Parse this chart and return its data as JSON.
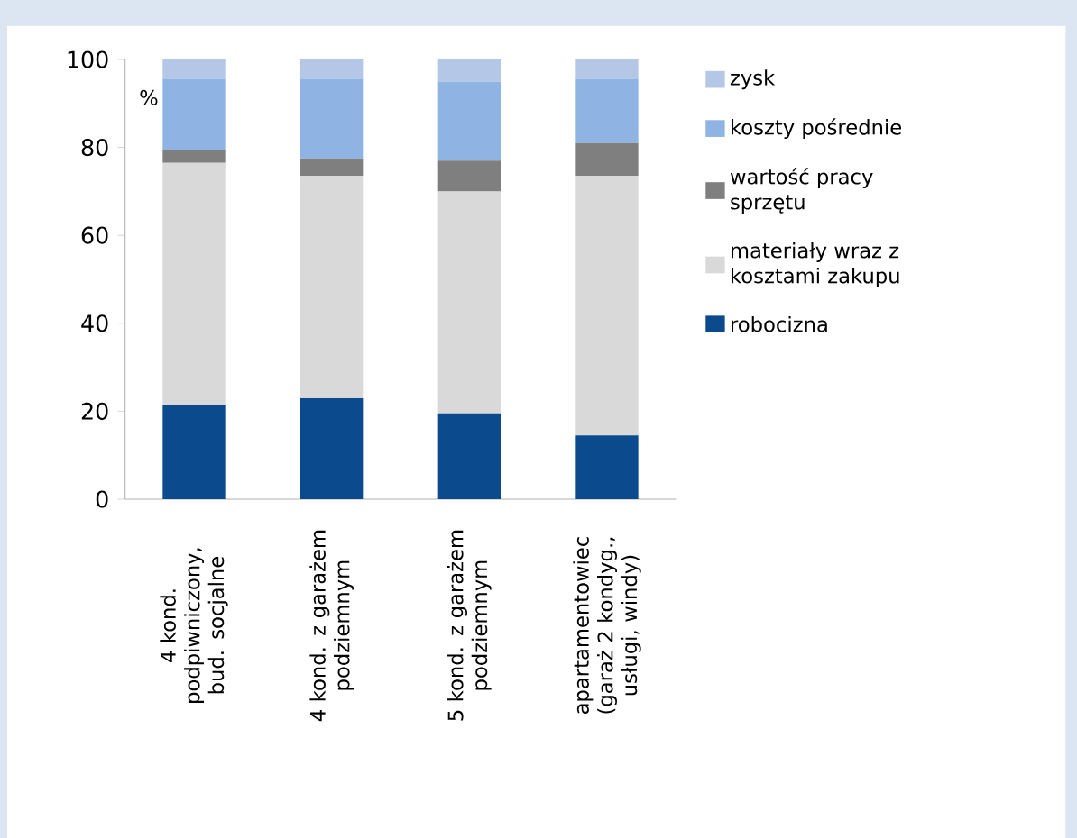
{
  "chart_data": {
    "type": "bar",
    "stacked": true,
    "ylabel": "%",
    "categories": [
      "4 kond. podpiwniczony, bud. socjalne",
      "4 kond. z garażem podziemnym",
      "5 kond. z garażem podziemnym",
      "apartamentowiec (garaż 2 kondyg., usługi, windy)"
    ],
    "series": [
      {
        "name": "robocizna",
        "color": "#0b4a8c",
        "values": [
          21.5,
          23,
          19.5,
          14.5
        ]
      },
      {
        "name": "materiały wraz z kosztami zakupu",
        "color": "#d9d9d9",
        "values": [
          55,
          50.5,
          50.5,
          59
        ]
      },
      {
        "name": "wartość pracy sprzętu",
        "color": "#7f7f7f",
        "values": [
          3,
          4,
          7,
          7.5
        ]
      },
      {
        "name": "koszty pośrednie",
        "color": "#8fb4e3",
        "values": [
          16,
          18,
          18,
          14.5
        ]
      },
      {
        "name": "zysk",
        "color": "#b4c7e7",
        "values": [
          4.5,
          4.5,
          5,
          4.5
        ]
      }
    ],
    "ylim": [
      0,
      100
    ],
    "yticks": [
      0,
      20,
      40,
      60,
      80,
      100
    ],
    "legend": "right"
  }
}
